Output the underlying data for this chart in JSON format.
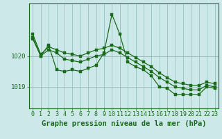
{
  "bg_color": "#cce8e8",
  "grid_color": "#88bbbb",
  "line_color": "#1a6b1a",
  "marker_color": "#1a6b1a",
  "xlabel": "Graphe pression niveau de la mer (hPa)",
  "xlabel_fontsize": 7.5,
  "tick_fontsize": 6.0,
  "ylim": [
    1018.3,
    1021.7
  ],
  "yticks": [
    1019,
    1020
  ],
  "xlim": [
    -0.5,
    23.5
  ],
  "xticks": [
    0,
    1,
    2,
    3,
    4,
    5,
    6,
    7,
    8,
    9,
    10,
    11,
    12,
    13,
    14,
    15,
    16,
    17,
    18,
    19,
    20,
    21,
    22,
    23
  ],
  "series": [
    {
      "x": [
        0,
        1,
        2,
        3,
        4,
        5,
        6,
        7,
        8,
        9,
        10,
        11,
        12,
        13,
        14,
        15,
        16,
        17,
        18,
        19,
        20,
        21,
        22,
        23
      ],
      "y": [
        1020.6,
        1020.0,
        1020.35,
        1019.55,
        1019.5,
        1019.55,
        1019.5,
        1019.6,
        1019.7,
        1020.1,
        1021.35,
        1020.7,
        1019.8,
        1019.65,
        1019.55,
        1019.35,
        1019.0,
        1018.95,
        1018.75,
        1018.75,
        1018.75,
        1018.75,
        1019.0,
        1018.95
      ]
    },
    {
      "x": [
        0,
        1,
        2,
        3,
        4,
        5,
        6,
        7,
        8,
        9,
        10,
        11,
        12,
        13,
        14,
        15,
        16,
        17,
        18,
        19,
        20,
        21,
        22,
        23
      ],
      "y": [
        1020.7,
        1020.05,
        1020.3,
        1020.2,
        1020.1,
        1020.05,
        1020.0,
        1020.1,
        1020.2,
        1020.25,
        1020.35,
        1020.25,
        1020.1,
        1019.95,
        1019.8,
        1019.65,
        1019.45,
        1019.3,
        1019.15,
        1019.1,
        1019.05,
        1019.05,
        1019.15,
        1019.1
      ]
    },
    {
      "x": [
        0,
        1,
        2,
        3,
        4,
        5,
        6,
        7,
        8,
        9,
        10,
        11,
        12,
        13,
        14,
        15,
        16,
        17,
        18,
        19,
        20,
        21,
        22,
        23
      ],
      "y": [
        1020.55,
        1020.0,
        1020.2,
        1020.1,
        1019.9,
        1019.85,
        1019.8,
        1019.9,
        1020.0,
        1020.05,
        1020.2,
        1020.1,
        1019.95,
        1019.8,
        1019.65,
        1019.5,
        1019.3,
        1019.15,
        1019.0,
        1018.95,
        1018.9,
        1018.9,
        1019.05,
        1019.0
      ]
    }
  ]
}
